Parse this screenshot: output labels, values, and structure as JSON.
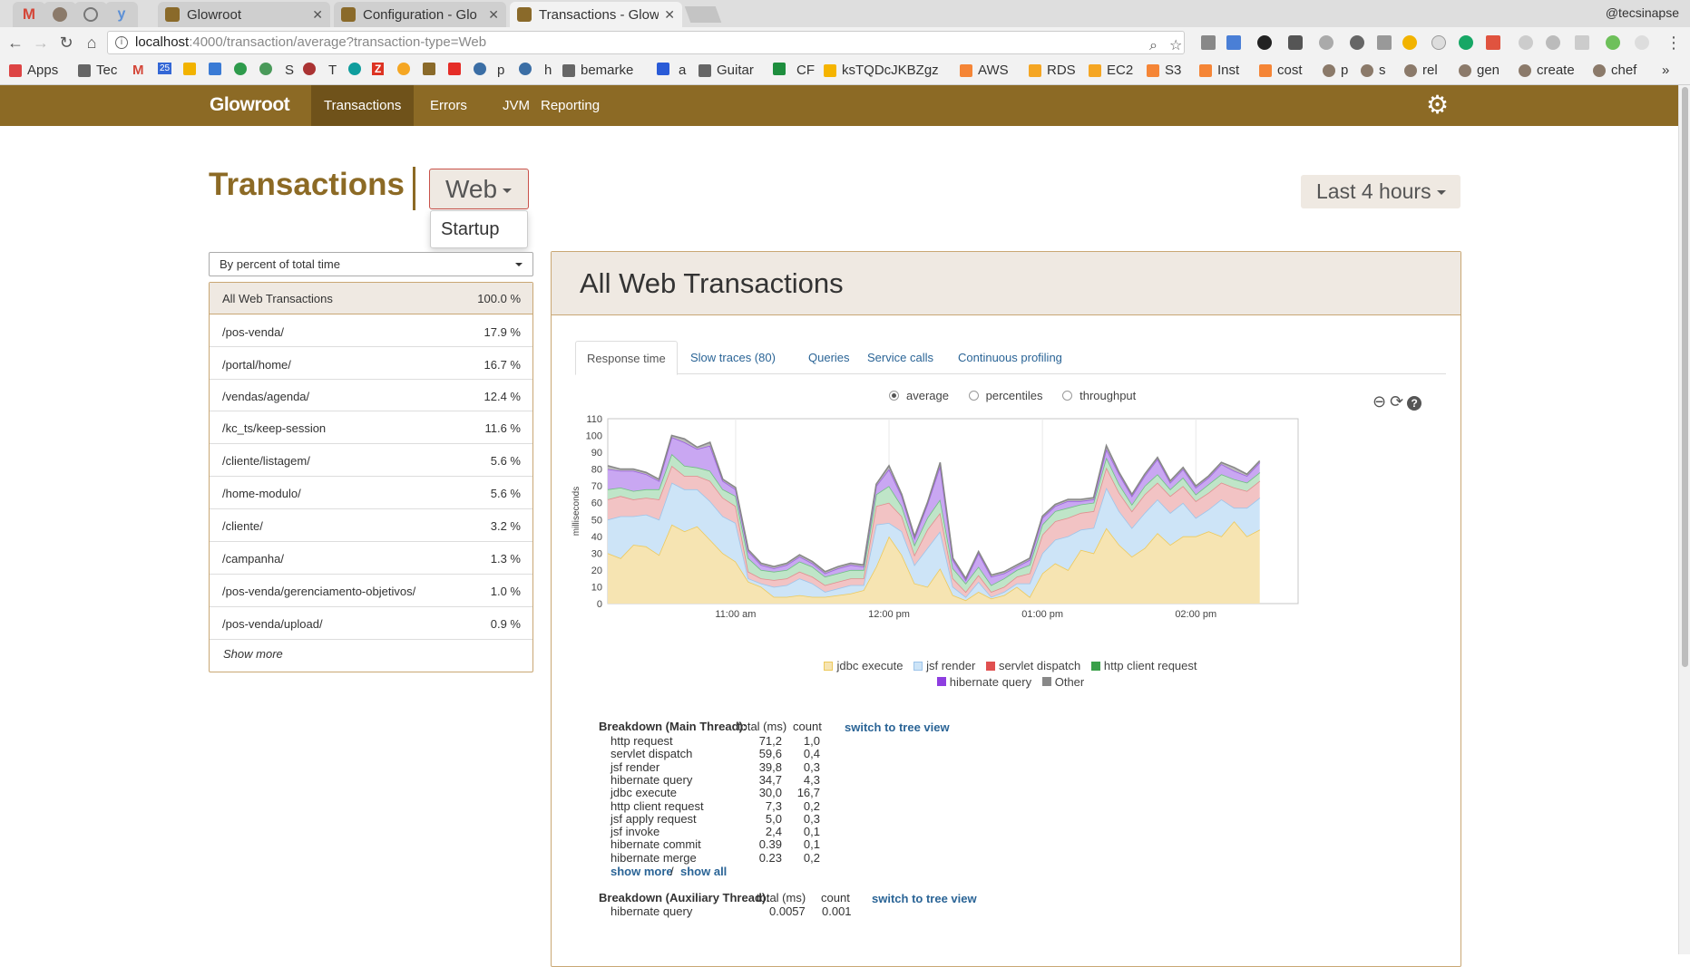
{
  "browser": {
    "tabs": [
      {
        "title": "",
        "icon": "gmail-icon",
        "pinned": true
      },
      {
        "title": "",
        "icon": "avatar-icon",
        "pinned": true
      },
      {
        "title": "",
        "icon": "extension-icon",
        "pinned": true
      },
      {
        "title": "",
        "icon": "yahoo-icon",
        "pinned": true
      },
      {
        "title": "Glowroot",
        "pinned": false
      },
      {
        "title": "Configuration - Glo",
        "pinned": false
      },
      {
        "title": "Transactions - Glow",
        "pinned": false,
        "active": true
      }
    ],
    "profile": "@tecsinapse",
    "url_host": "localhost",
    "url_rest": ":4000/transaction/average?transaction-type=Web",
    "bookmarks": [
      "Apps",
      "Tec",
      "M",
      "25",
      "",
      "",
      "",
      "",
      "S",
      "",
      "T",
      "",
      "Z",
      "",
      "",
      "",
      "",
      "p",
      "",
      "h",
      "bemarke",
      "",
      "a",
      "Guitar",
      "",
      "CF",
      "",
      "ksTQDcJKBZgz",
      "",
      "AWS",
      "",
      "RDS",
      "",
      "EC2",
      "",
      "S3",
      "",
      "Inst",
      "",
      "cost",
      "",
      "p",
      "",
      "s",
      "",
      "rel",
      "",
      "gen",
      "",
      "create",
      "",
      "chef",
      "»"
    ]
  },
  "app": {
    "brand": "Glowroot",
    "nav": [
      "Transactions",
      "Errors",
      "JVM",
      "Reporting"
    ],
    "page_title": "Transactions",
    "transaction_type": "Web",
    "type_menu_option": "Startup",
    "time_range": "Last 4 hours",
    "sort_by": "By percent of total time",
    "transactions": [
      {
        "name": "All Web Transactions",
        "percent": "100.0 %"
      },
      {
        "name": "/pos-venda/",
        "percent": "17.9 %"
      },
      {
        "name": "/portal/home/",
        "percent": "16.7 %"
      },
      {
        "name": "/vendas/agenda/",
        "percent": "12.4 %"
      },
      {
        "name": "/kc_ts/keep-session",
        "percent": "11.6 %"
      },
      {
        "name": "/cliente/listagem/",
        "percent": "5.6 %"
      },
      {
        "name": "/home-modulo/",
        "percent": "5.6 %"
      },
      {
        "name": "/cliente/",
        "percent": "3.2 %"
      },
      {
        "name": "/campanha/",
        "percent": "1.3 %"
      },
      {
        "name": "/pos-venda/gerenciamento-objetivos/",
        "percent": "1.0 %"
      },
      {
        "name": "/pos-venda/upload/",
        "percent": "0.9 %"
      }
    ],
    "show_more_transactions": "Show more",
    "panel_title": "All Web Transactions",
    "panel_tabs": [
      "Response time",
      "Slow traces (80)",
      "Queries",
      "Service calls",
      "Continuous profiling"
    ],
    "radio_options": [
      "average",
      "percentiles",
      "throughput"
    ],
    "breakdown_main": {
      "title": "Breakdown (Main Thread):",
      "col_total": "total (ms)",
      "col_count": "count",
      "switch_link": "switch to tree view",
      "rows": [
        {
          "name": "http request",
          "total": "71,2",
          "count": "1,0"
        },
        {
          "name": "servlet dispatch",
          "total": "59,6",
          "count": "0,4"
        },
        {
          "name": "jsf render",
          "total": "39,8",
          "count": "0,3"
        },
        {
          "name": "hibernate query",
          "total": "34,7",
          "count": "4,3"
        },
        {
          "name": "jdbc execute",
          "total": "30,0",
          "count": "16,7"
        },
        {
          "name": "http client request",
          "total": "7,3",
          "count": "0,2"
        },
        {
          "name": "jsf apply request",
          "total": "5,0",
          "count": "0,3"
        },
        {
          "name": "jsf invoke",
          "total": "2,4",
          "count": "0,1"
        },
        {
          "name": "hibernate commit",
          "total": "0.39",
          "count": "0,1"
        },
        {
          "name": "hibernate merge",
          "total": "0.23",
          "count": "0,2"
        }
      ],
      "show_more": "show more",
      "separator": "/",
      "show_all": "show all"
    },
    "breakdown_aux": {
      "title": "Breakdown (Auxiliary Thread):",
      "col_total": "total (ms)",
      "col_count": "count",
      "switch_link": "switch to tree view",
      "rows": [
        {
          "name": "hibernate query",
          "total": "0.0057",
          "count": "0.001"
        }
      ]
    }
  },
  "chart_data": {
    "type": "area",
    "stacked": true,
    "title": "",
    "ylabel": "milliseconds",
    "ylim": [
      0,
      110
    ],
    "yticks": [
      0,
      10,
      20,
      30,
      40,
      50,
      60,
      70,
      80,
      90,
      100,
      110
    ],
    "xlabels": [
      "11:00 am",
      "12:00 pm",
      "01:00 pm",
      "02:00 pm"
    ],
    "x_label_at": [
      10,
      22,
      34,
      46
    ],
    "x_range": [
      0,
      54
    ],
    "series": [
      {
        "name": "jdbc execute",
        "color": "#f6e4b2",
        "stroke": "#edc95a",
        "values": [
          30,
          27,
          35,
          34,
          29,
          47,
          43,
          46,
          38,
          30,
          25,
          13,
          10,
          4,
          4,
          5,
          4,
          4,
          5,
          6,
          8,
          22,
          40,
          29,
          12,
          10,
          21,
          5,
          2,
          7,
          3,
          5,
          10,
          4,
          18,
          24,
          20,
          32,
          30,
          45,
          35,
          28,
          33,
          42,
          35,
          40,
          40,
          43,
          40,
          49,
          40,
          44
        ]
      },
      {
        "name": "jsf render",
        "color": "#cde4f7",
        "stroke": "#9cc4ea",
        "values": [
          20,
          25,
          17,
          19,
          21,
          25,
          25,
          22,
          23,
          22,
          23,
          2,
          2,
          6,
          7,
          10,
          8,
          3,
          4,
          5,
          3,
          25,
          8,
          14,
          11,
          23,
          22,
          5,
          2,
          6,
          1,
          2,
          2,
          8,
          12,
          14,
          20,
          12,
          15,
          24,
          20,
          17,
          21,
          20,
          19,
          20,
          11,
          13,
          22,
          8,
          17,
          19
        ]
      },
      {
        "name": "servlet dispatch",
        "color": "#f2c3c4",
        "stroke": "#e08d8e",
        "values": [
          12,
          12,
          10,
          10,
          12,
          10,
          8,
          8,
          12,
          11,
          10,
          4,
          3,
          4,
          4,
          4,
          4,
          4,
          4,
          4,
          4,
          11,
          12,
          9,
          6,
          11,
          11,
          5,
          3,
          4,
          3,
          3,
          4,
          6,
          11,
          11,
          11,
          10,
          10,
          12,
          11,
          10,
          11,
          10,
          10,
          10,
          10,
          10,
          10,
          12,
          10,
          10
        ]
      },
      {
        "name": "http client request",
        "color": "#bfe5c8",
        "stroke": "#6fbf82",
        "values": [
          6,
          5,
          5,
          5,
          6,
          7,
          6,
          5,
          6,
          5,
          6,
          8,
          5,
          5,
          5,
          6,
          6,
          5,
          5,
          5,
          5,
          7,
          10,
          6,
          6,
          7,
          8,
          6,
          5,
          5,
          4,
          5,
          4,
          5,
          6,
          6,
          6,
          5,
          5,
          6,
          5,
          4,
          5,
          5,
          4,
          5,
          4,
          5,
          5,
          5,
          5,
          5
        ]
      },
      {
        "name": "hibernate query",
        "color": "#c9a7f2",
        "stroke": "#9b5fe0",
        "values": [
          12,
          10,
          12,
          9,
          5,
          10,
          14,
          11,
          15,
          5,
          4,
          4,
          3,
          2,
          3,
          3,
          2,
          2,
          3,
          3,
          2,
          5,
          10,
          6,
          4,
          8,
          20,
          5,
          2,
          8,
          5,
          3,
          2,
          3,
          4,
          3,
          4,
          2,
          2,
          5,
          6,
          5,
          6,
          9,
          4,
          5,
          4,
          4,
          6,
          5,
          4,
          6
        ]
      },
      {
        "name": "Other",
        "color": "#bbbbbb",
        "stroke": "#888888",
        "values": [
          2,
          1,
          1,
          1,
          1,
          1,
          2,
          1,
          2,
          1,
          1,
          1,
          1,
          1,
          1,
          1,
          1,
          1,
          1,
          1,
          1,
          1,
          2,
          1,
          1,
          1,
          2,
          1,
          1,
          1,
          1,
          1,
          1,
          1,
          1,
          1,
          1,
          1,
          1,
          2,
          1,
          1,
          1,
          1,
          1,
          1,
          1,
          1,
          1,
          2,
          1,
          1
        ]
      }
    ]
  }
}
